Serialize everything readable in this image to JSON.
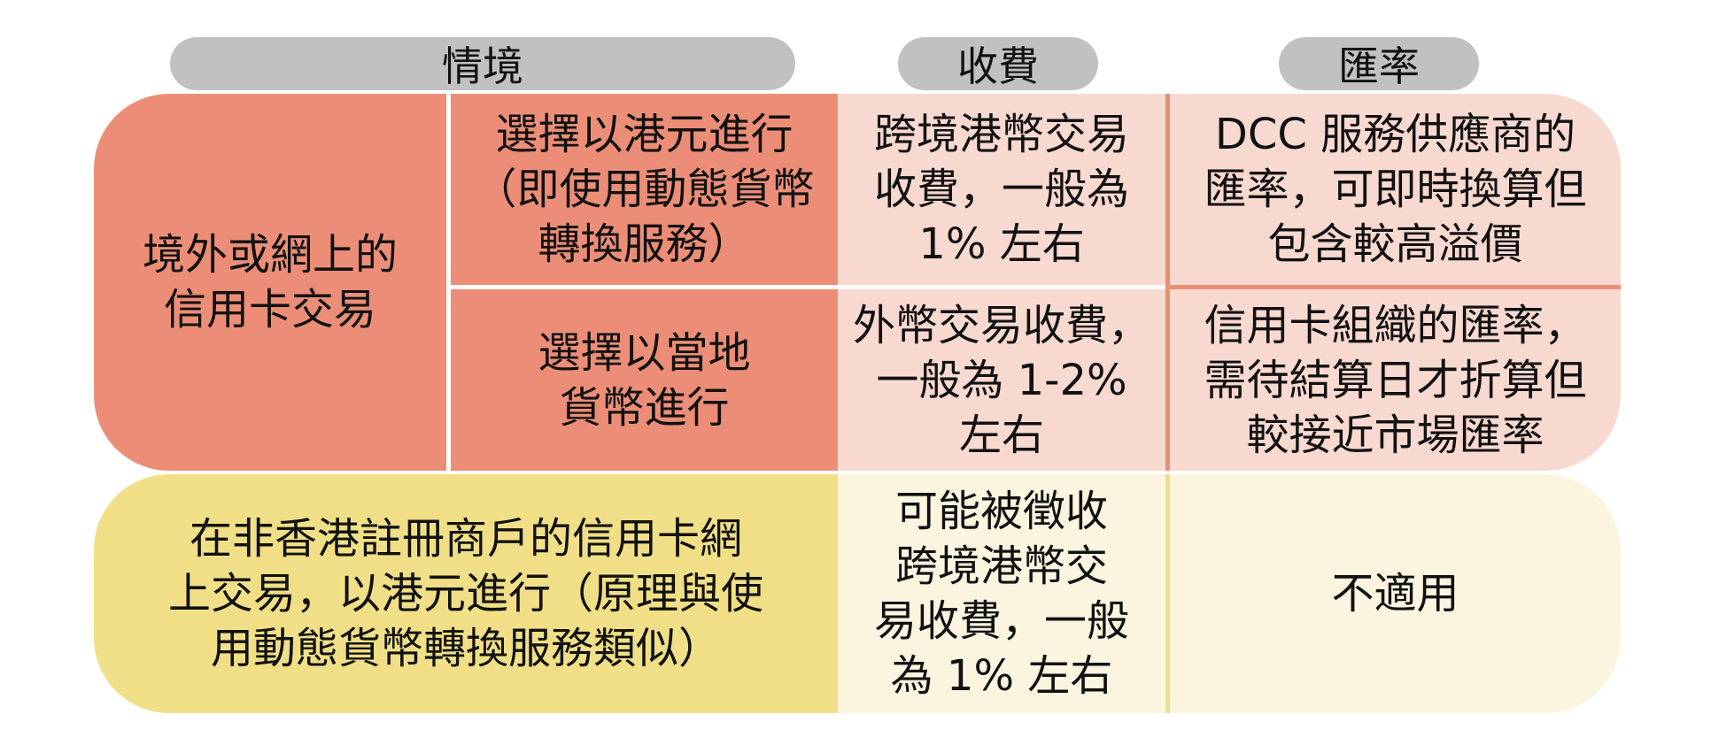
{
  "headers": {
    "scenario": "情境",
    "fee": "收費",
    "rate": "匯率"
  },
  "row1": {
    "category_lines": [
      "境外或網上的",
      "信用卡交易"
    ],
    "option_hkd_lines": [
      "選擇以港元進行",
      "（即使用動態貨幣",
      "轉換服務）"
    ],
    "option_hkd_fee_lines": [
      "跨境港幣交易",
      "收費，一般為",
      "1% 左右"
    ],
    "option_hkd_rate_lines": [
      "DCC 服務供應商的",
      "匯率，可即時換算但",
      "包含較高溢價"
    ],
    "option_local_lines": [
      "選擇以當地",
      "貨幣進行"
    ],
    "option_local_fee_lines": [
      "外幣交易收費，",
      "一般為 1-2%",
      "左右"
    ],
    "option_local_rate_lines": [
      "信用卡組織的匯率，",
      "需待結算日才折算但",
      "較接近市場匯率"
    ]
  },
  "row2": {
    "category_lines": [
      "在非香港註冊商戶的信用卡網",
      "上交易，以港元進行（原理與使",
      "用動態貨幣轉換服務類似）"
    ],
    "fee_lines": [
      "可能被徵收",
      "跨境港幣交",
      "易收費，一般",
      "為 1% 左右"
    ],
    "rate": "不適用"
  },
  "colors": {
    "header_pill": "#c1c1c1",
    "red_dark": "#ec8e77",
    "red_light": "#f8d9d0",
    "yellow_dark": "#f0df86",
    "yellow_light": "#fbf5e0"
  }
}
